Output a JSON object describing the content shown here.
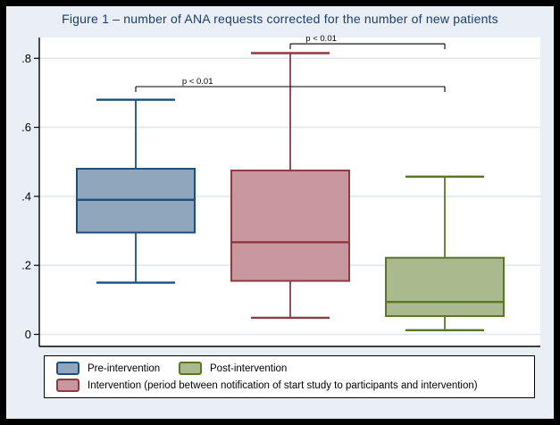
{
  "title": "Figure 1 – number of ANA requests corrected for the number of new patients",
  "colors": {
    "frame_border": "#000000",
    "background": "#e9eff4",
    "plot_background": "#ffffff",
    "gridline": "#dde9f1",
    "axis": "#000000",
    "title_text": "#1a3c6e",
    "annotation": "#000000"
  },
  "chart_data": {
    "type": "box",
    "title": "Figure 1 – number of ANA requests corrected for the number of new patients",
    "xlabel": "",
    "ylabel": "",
    "ylim": [
      0,
      0.86
    ],
    "yticks": [
      0,
      0.2,
      0.4,
      0.6,
      0.8
    ],
    "ytick_labels": [
      "0",
      ".2",
      ".4",
      ".6",
      ".8"
    ],
    "grid": true,
    "legend_position": "bottom",
    "series": [
      {
        "key": "pre",
        "name": "Pre-intervention",
        "whisker_low": 0.15,
        "q1": 0.295,
        "median": 0.39,
        "q3": 0.48,
        "whisker_high": 0.68,
        "fill": "#8fa6bd",
        "stroke": "#1d4e7c"
      },
      {
        "key": "intervention",
        "name": "Intervention (period between notification of start study to participants and intervention)",
        "whisker_low": 0.048,
        "q1": 0.155,
        "median": 0.267,
        "q3": 0.475,
        "whisker_high": 0.815,
        "fill": "#c9989f",
        "stroke": "#8d3a45"
      },
      {
        "key": "post",
        "name": "Post-intervention",
        "whisker_low": 0.012,
        "q1": 0.053,
        "median": 0.094,
        "q3": 0.222,
        "whisker_high": 0.457,
        "fill": "#abb98e",
        "stroke": "#5a7728"
      }
    ],
    "annotations": [
      {
        "label": "p < 0.01",
        "from": 1,
        "to": 2,
        "v": 0.842
      },
      {
        "label": "p < 0.01",
        "from": 0,
        "to": 2,
        "v": 0.718
      }
    ],
    "legend": {
      "rows": [
        [
          {
            "key": "pre",
            "label": "Pre-intervention",
            "fill": "#8fa6bd",
            "stroke": "#1d4e7c"
          },
          {
            "key": "post",
            "label": "Post-intervention",
            "fill": "#abb98e",
            "stroke": "#5a7728"
          }
        ],
        [
          {
            "key": "intervention",
            "label": "Intervention (period between notification of start study to participants and intervention)",
            "fill": "#c9989f",
            "stroke": "#8d3a45"
          }
        ]
      ]
    }
  }
}
